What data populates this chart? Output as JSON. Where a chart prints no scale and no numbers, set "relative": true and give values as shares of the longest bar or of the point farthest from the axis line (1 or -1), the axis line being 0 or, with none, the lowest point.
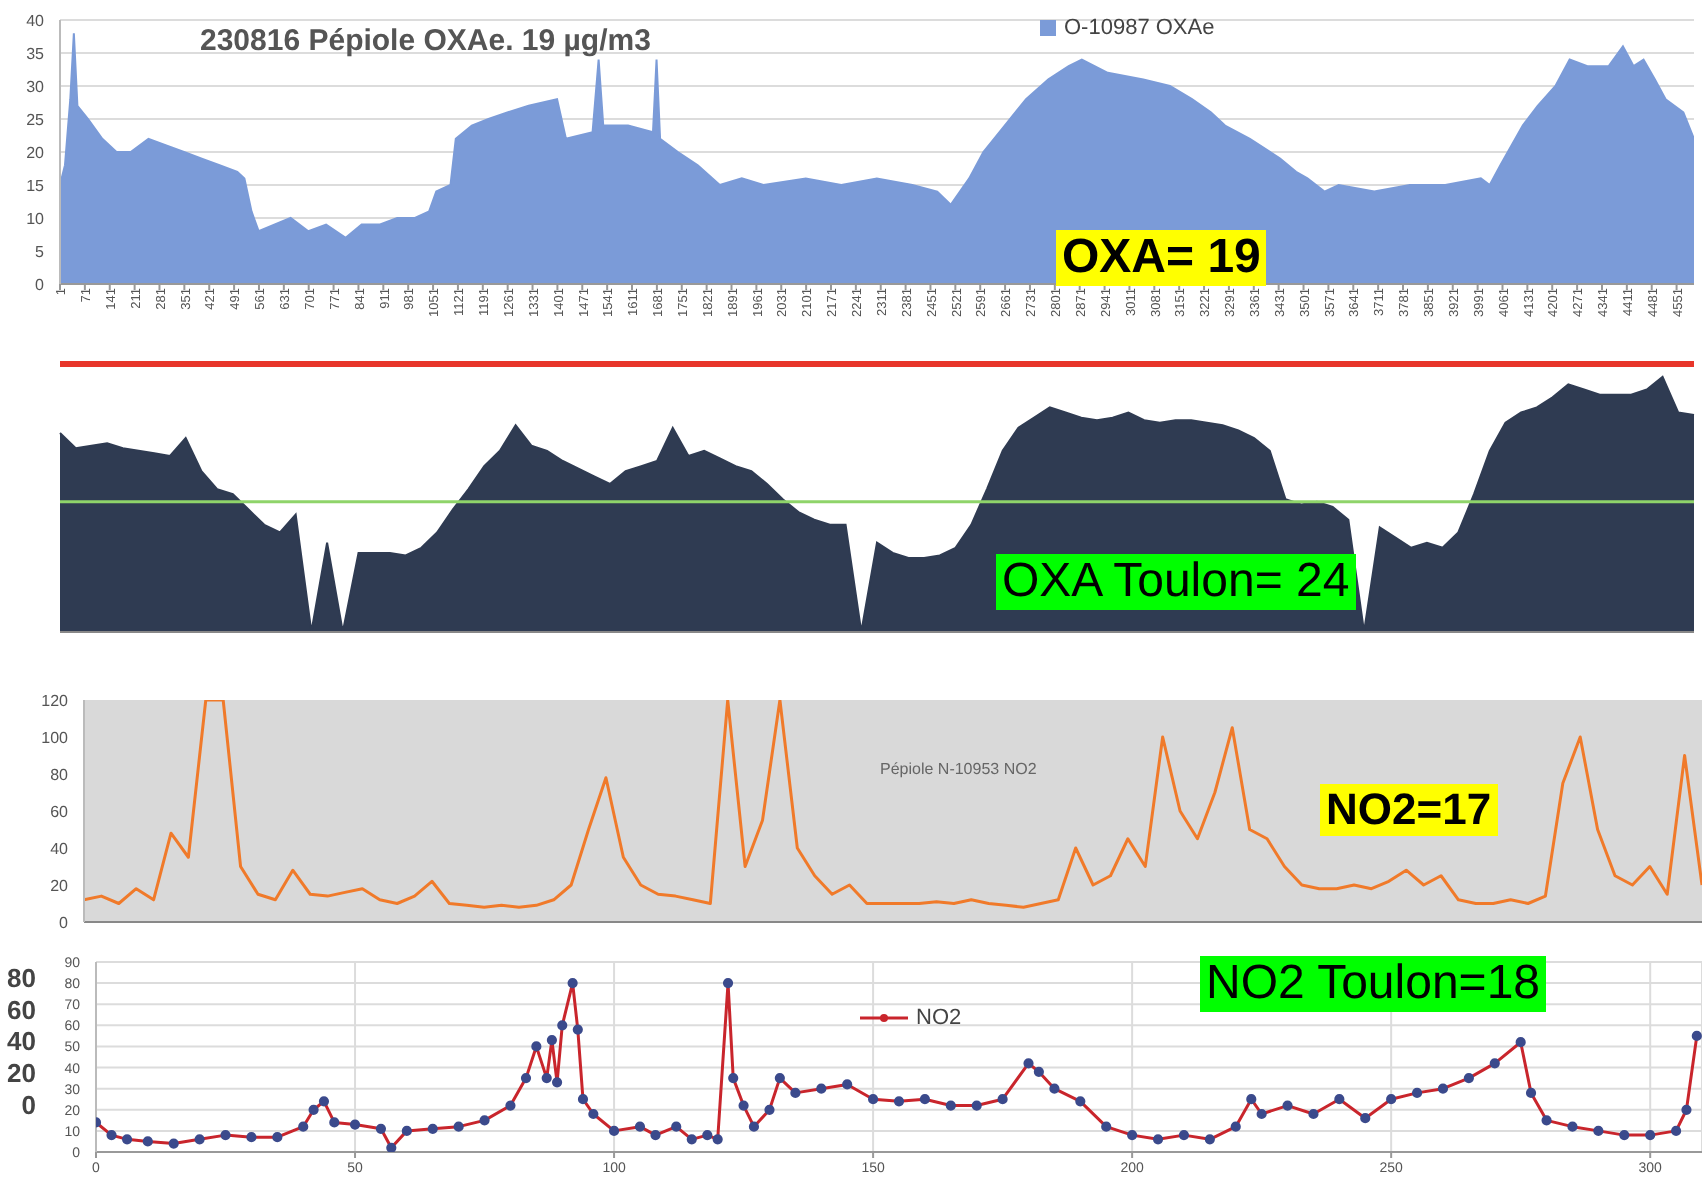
{
  "chart_data": [
    {
      "type": "area",
      "title": "230816 Pépiole  OXAe. 19 µg/m3",
      "annotations": [
        "OXA= 19"
      ],
      "legend": "top",
      "grid": "y",
      "xlim": [
        1,
        4600
      ],
      "ylim": [
        0,
        40
      ],
      "yticks": [
        0,
        5,
        10,
        15,
        20,
        25,
        30,
        35,
        40
      ],
      "xticks": [
        1,
        71,
        141,
        211,
        281,
        351,
        421,
        491,
        561,
        631,
        701,
        771,
        841,
        911,
        981,
        1051,
        1121,
        1191,
        1261,
        1331,
        1401,
        1471,
        1541,
        1611,
        1681,
        1751,
        1821,
        1891,
        1961,
        2031,
        2101,
        2171,
        2241,
        2311,
        2381,
        2451,
        2521,
        2591,
        2661,
        2731,
        2801,
        2871,
        2941,
        3011,
        3081,
        3151,
        3221,
        3291,
        3361,
        3431,
        3501,
        3571,
        3641,
        3711,
        3781,
        3851,
        3921,
        3991,
        4061,
        4131,
        4201,
        4271,
        4341,
        4411,
        4481,
        4551
      ],
      "x": [
        1,
        15,
        30,
        40,
        50,
        80,
        120,
        160,
        200,
        250,
        300,
        350,
        400,
        450,
        500,
        520,
        540,
        560,
        650,
        700,
        750,
        805,
        850,
        900,
        950,
        1000,
        1040,
        1060,
        1100,
        1115,
        1160,
        1207,
        1260,
        1320,
        1400,
        1425,
        1500,
        1517,
        1530,
        1600,
        1670,
        1680,
        1690,
        1740,
        1796,
        1858,
        1920,
        1981,
        2100,
        2200,
        2300,
        2400,
        2470,
        2508,
        2560,
        2600,
        2660,
        2720,
        2783,
        2840,
        2877,
        2950,
        3050,
        3125,
        3187,
        3240,
        3280,
        3350,
        3435,
        3480,
        3512,
        3560,
        3600,
        3700,
        3800,
        3900,
        4000,
        4025,
        4055,
        4118,
        4160,
        4210,
        4250,
        4300,
        4360,
        4400,
        4430,
        4458,
        4490,
        4520,
        4570,
        4600
      ],
      "series": [
        {
          "name": "O-10987 OXAe",
          "color": "#7b9bd8",
          "values": [
            15,
            18,
            28,
            38,
            27,
            25,
            22,
            20,
            20,
            22,
            21,
            20,
            19,
            18,
            17,
            16,
            11,
            8,
            10,
            8,
            9,
            7,
            9,
            9,
            10,
            10,
            11,
            14,
            15,
            22,
            24,
            25,
            26,
            27,
            28,
            22,
            23,
            34,
            24,
            24,
            23,
            34,
            22,
            20,
            18,
            15,
            16,
            15,
            16,
            15,
            16,
            15,
            14,
            12,
            16,
            20,
            24,
            28,
            31,
            33,
            34,
            32,
            31,
            30,
            28,
            26,
            24,
            22,
            19,
            17,
            16,
            14,
            15,
            14,
            15,
            15,
            16,
            15,
            18,
            24,
            27,
            30,
            34,
            33,
            33,
            36,
            33,
            34,
            31,
            28,
            26,
            22
          ]
        }
      ]
    },
    {
      "type": "area",
      "relative": true,
      "annotations": [
        "OXA Toulon= 24"
      ],
      "ref_lines": [
        {
          "axis": "y",
          "value": 1.05,
          "color": "#e8352a"
        },
        {
          "axis": "y",
          "value": 0.51,
          "color": "#8fd46a"
        }
      ],
      "categories": [
        null,
        null,
        null,
        null,
        null,
        null,
        null,
        null,
        null,
        null,
        null,
        null,
        null,
        null,
        null,
        null,
        null,
        null,
        null,
        null,
        null,
        null,
        null,
        null,
        null,
        null,
        null,
        null,
        null,
        null,
        null,
        null,
        null,
        null,
        null,
        null,
        null,
        null,
        null,
        null,
        null,
        null,
        null,
        null,
        null,
        null,
        null,
        null,
        null,
        null,
        null,
        null,
        null,
        null,
        null,
        null,
        null,
        null,
        null,
        null,
        null,
        null,
        null,
        null,
        null,
        null,
        null,
        null,
        null,
        null,
        null,
        null,
        null,
        null,
        null,
        null,
        null,
        null,
        null,
        null,
        null,
        null,
        null,
        null,
        null,
        null,
        null,
        null,
        null,
        null,
        null,
        null,
        null,
        null,
        null,
        null,
        null,
        null,
        null,
        null,
        null,
        null,
        null,
        null,
        null
      ],
      "series": [
        {
          "color": "#2f3b52",
          "values": [
            0.78,
            0.72,
            0.73,
            0.74,
            0.72,
            0.71,
            0.7,
            0.69,
            0.76,
            0.63,
            0.56,
            0.54,
            0.48,
            0.42,
            0.39,
            0.46,
            0,
            0.35,
            0,
            0.31,
            0.31,
            0.31,
            0.3,
            0.33,
            0.39,
            0.48,
            0.56,
            0.65,
            0.71,
            0.81,
            0.73,
            0.71,
            0.67,
            0.64,
            0.61,
            0.58,
            0.63,
            0.65,
            0.67,
            0.8,
            0.69,
            0.71,
            0.68,
            0.65,
            0.63,
            0.58,
            0.52,
            0.47,
            0.44,
            0.42,
            0.42,
            0,
            0.35,
            0.31,
            0.29,
            0.29,
            0.3,
            0.33,
            0.42,
            0.56,
            0.71,
            0.8,
            0.84,
            0.88,
            0.86,
            0.84,
            0.83,
            0.84,
            0.86,
            0.83,
            0.82,
            0.83,
            0.83,
            0.82,
            0.81,
            0.79,
            0.76,
            0.71,
            0.52,
            0.5,
            0.51,
            0.49,
            0.44,
            0,
            0.41,
            0.37,
            0.33,
            0.35,
            0.33,
            0.39,
            0.54,
            0.71,
            0.82,
            0.86,
            0.88,
            0.92,
            0.97,
            0.95,
            0.93,
            0.93,
            0.93,
            0.95,
            1,
            0.86,
            0.85
          ]
        }
      ]
    },
    {
      "type": "line",
      "title": "Pépiole N-10953 NO2",
      "annotations": [
        "NO2=17"
      ],
      "ylim": [
        0,
        120
      ],
      "yticks": [
        0,
        20,
        40,
        60,
        80,
        100,
        120
      ],
      "categories": [
        null,
        null,
        null,
        null,
        null,
        null,
        null,
        null,
        null,
        null,
        null,
        null,
        null,
        null,
        null,
        null,
        null,
        null,
        null,
        null,
        null,
        null,
        null,
        null,
        null,
        null,
        null,
        null,
        null,
        null,
        null,
        null,
        null,
        null,
        null,
        null,
        null,
        null,
        null,
        null,
        null,
        null,
        null,
        null,
        null,
        null,
        null,
        null,
        null,
        null,
        null,
        null,
        null,
        null,
        null,
        null,
        null,
        null,
        null,
        null,
        null,
        null,
        null,
        null,
        null,
        null,
        null,
        null,
        null,
        null,
        null,
        null,
        null,
        null,
        null,
        null,
        null,
        null,
        null,
        null,
        null,
        null,
        null,
        null,
        null,
        null,
        null,
        null,
        null,
        null,
        null,
        null,
        null,
        null
      ],
      "series": [
        {
          "color": "#f07a2a",
          "values": [
            12,
            14,
            10,
            18,
            12,
            48,
            35,
            120,
            120,
            30,
            15,
            12,
            28,
            15,
            14,
            16,
            18,
            12,
            10,
            14,
            22,
            10,
            9,
            8,
            9,
            8,
            9,
            12,
            20,
            50,
            78,
            35,
            20,
            15,
            14,
            12,
            10,
            120,
            30,
            55,
            120,
            40,
            25,
            15,
            20,
            10,
            10,
            10,
            10,
            11,
            10,
            12,
            10,
            9,
            8,
            10,
            12,
            40,
            20,
            25,
            45,
            30,
            100,
            60,
            45,
            70,
            105,
            50,
            45,
            30,
            20,
            18,
            18,
            20,
            18,
            22,
            28,
            20,
            25,
            12,
            10,
            10,
            12,
            10,
            14,
            75,
            100,
            50,
            25,
            20,
            30,
            15,
            90,
            20
          ]
        }
      ]
    },
    {
      "type": "line",
      "annotations": [
        "NO2 Toulon=18"
      ],
      "legend": "top",
      "grid": true,
      "marker": "circle",
      "line_style": "solid",
      "xlim": [
        0,
        310
      ],
      "xticks": [
        0,
        50,
        100,
        150,
        200,
        250,
        300
      ],
      "ylim": [
        0,
        90
      ],
      "yticks": [
        0,
        10,
        20,
        30,
        40,
        50,
        60,
        70,
        80,
        90
      ],
      "y2lim": [
        -30,
        90
      ],
      "y2ticks": [
        0,
        20,
        40,
        60,
        80
      ],
      "x": [
        0,
        3,
        6,
        10,
        15,
        20,
        25,
        30,
        35,
        40,
        42,
        44,
        46,
        50,
        55,
        57,
        60,
        65,
        70,
        75,
        80,
        83,
        85,
        87,
        88,
        89,
        90,
        92,
        93,
        94,
        96,
        100,
        105,
        108,
        112,
        115,
        118,
        120,
        122,
        123,
        125,
        127,
        130,
        132,
        135,
        140,
        145,
        150,
        155,
        160,
        165,
        170,
        175,
        180,
        182,
        185,
        190,
        195,
        200,
        205,
        210,
        215,
        220,
        223,
        225,
        230,
        235,
        240,
        245,
        250,
        255,
        260,
        265,
        270,
        275,
        277,
        280,
        285,
        290,
        295,
        300,
        305,
        307,
        309
      ],
      "series": [
        {
          "name": "NO2",
          "color": "#c9252c",
          "values": [
            14,
            8,
            6,
            5,
            4,
            6,
            8,
            7,
            7,
            12,
            20,
            24,
            14,
            13,
            11,
            2,
            10,
            11,
            12,
            15,
            22,
            35,
            50,
            35,
            53,
            33,
            60,
            80,
            58,
            25,
            18,
            10,
            12,
            8,
            12,
            6,
            8,
            6,
            80,
            35,
            22,
            12,
            20,
            35,
            28,
            30,
            32,
            25,
            24,
            25,
            22,
            22,
            25,
            42,
            38,
            30,
            24,
            12,
            8,
            6,
            8,
            6,
            12,
            25,
            18,
            22,
            18,
            25,
            16,
            25,
            28,
            30,
            35,
            42,
            52,
            28,
            15,
            12,
            10,
            8,
            8,
            10,
            20,
            55
          ]
        }
      ]
    }
  ]
}
